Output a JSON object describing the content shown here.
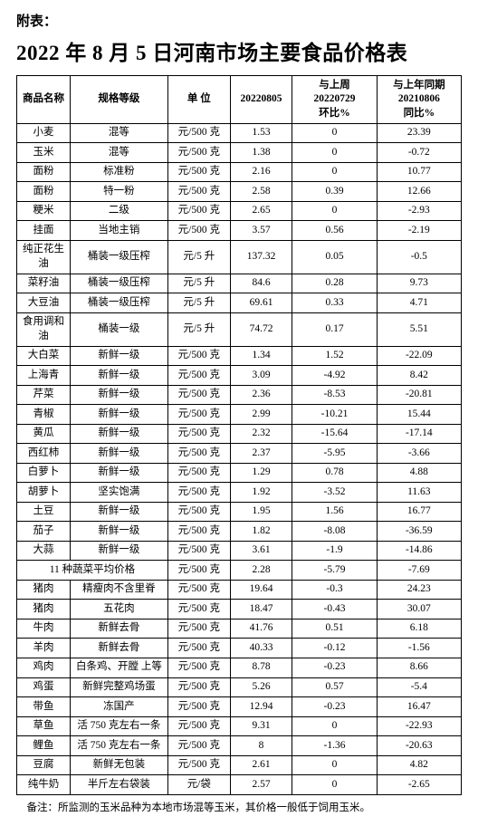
{
  "pre_title": "附表：",
  "title": "2022 年 8 月 5 日河南市场主要食品价格表",
  "headers": {
    "name": "商品名称",
    "spec": "规格等级",
    "unit": "单 位",
    "price": "20220805",
    "wow_l1": "与上周",
    "wow_l2": "20220729",
    "wow_l3": "环比%",
    "yoy_l1": "与上年同期",
    "yoy_l2": "20210806",
    "yoy_l3": "同比%"
  },
  "rows": [
    {
      "name": "小麦",
      "spec": "混等",
      "unit": "元/500 克",
      "price": "1.53",
      "wow": "0",
      "yoy": "23.39"
    },
    {
      "name": "玉米",
      "spec": "混等",
      "unit": "元/500 克",
      "price": "1.38",
      "wow": "0",
      "yoy": "-0.72"
    },
    {
      "name": "面粉",
      "spec": "标准粉",
      "unit": "元/500 克",
      "price": "2.16",
      "wow": "0",
      "yoy": "10.77"
    },
    {
      "name": "面粉",
      "spec": "特一粉",
      "unit": "元/500 克",
      "price": "2.58",
      "wow": "0.39",
      "yoy": "12.66"
    },
    {
      "name": "粳米",
      "spec": "二级",
      "unit": "元/500 克",
      "price": "2.65",
      "wow": "0",
      "yoy": "-2.93"
    },
    {
      "name": "挂面",
      "spec": "当地主销",
      "unit": "元/500 克",
      "price": "3.57",
      "wow": "0.56",
      "yoy": "-2.19"
    },
    {
      "name": "纯正花生油",
      "spec": "桶装一级压榨",
      "unit": "元/5 升",
      "price": "137.32",
      "wow": "0.05",
      "yoy": "-0.5"
    },
    {
      "name": "菜籽油",
      "spec": "桶装一级压榨",
      "unit": "元/5 升",
      "price": "84.6",
      "wow": "0.28",
      "yoy": "9.73"
    },
    {
      "name": "大豆油",
      "spec": "桶装一级压榨",
      "unit": "元/5 升",
      "price": "69.61",
      "wow": "0.33",
      "yoy": "4.71"
    },
    {
      "name": "食用调和油",
      "spec": "桶装一级",
      "unit": "元/5 升",
      "price": "74.72",
      "wow": "0.17",
      "yoy": "5.51"
    },
    {
      "name": "大白菜",
      "spec": "新鲜一级",
      "unit": "元/500 克",
      "price": "1.34",
      "wow": "1.52",
      "yoy": "-22.09"
    },
    {
      "name": "上海青",
      "spec": "新鲜一级",
      "unit": "元/500 克",
      "price": "3.09",
      "wow": "-4.92",
      "yoy": "8.42"
    },
    {
      "name": "芹菜",
      "spec": "新鲜一级",
      "unit": "元/500 克",
      "price": "2.36",
      "wow": "-8.53",
      "yoy": "-20.81"
    },
    {
      "name": "青椒",
      "spec": "新鲜一级",
      "unit": "元/500 克",
      "price": "2.99",
      "wow": "-10.21",
      "yoy": "15.44"
    },
    {
      "name": "黄瓜",
      "spec": "新鲜一级",
      "unit": "元/500 克",
      "price": "2.32",
      "wow": "-15.64",
      "yoy": "-17.14"
    },
    {
      "name": "西红柿",
      "spec": "新鲜一级",
      "unit": "元/500 克",
      "price": "2.37",
      "wow": "-5.95",
      "yoy": "-3.66"
    },
    {
      "name": "白萝卜",
      "spec": "新鲜一级",
      "unit": "元/500 克",
      "price": "1.29",
      "wow": "0.78",
      "yoy": "4.88"
    },
    {
      "name": "胡萝卜",
      "spec": "坚实饱满",
      "unit": "元/500 克",
      "price": "1.92",
      "wow": "-3.52",
      "yoy": "11.63"
    },
    {
      "name": "土豆",
      "spec": "新鲜一级",
      "unit": "元/500 克",
      "price": "1.95",
      "wow": "1.56",
      "yoy": "16.77"
    },
    {
      "name": "茄子",
      "spec": "新鲜一级",
      "unit": "元/500 克",
      "price": "1.82",
      "wow": "-8.08",
      "yoy": "-36.59"
    },
    {
      "name": "大蒜",
      "spec": "新鲜一级",
      "unit": "元/500 克",
      "price": "3.61",
      "wow": "-1.9",
      "yoy": "-14.86"
    }
  ],
  "avg_row": {
    "label": "11 种蔬菜平均价格",
    "unit": "元/500 克",
    "price": "2.28",
    "wow": "-5.79",
    "yoy": "-7.69"
  },
  "rows2": [
    {
      "name": "猪肉",
      "spec": "精瘦肉不含里脊",
      "unit": "元/500 克",
      "price": "19.64",
      "wow": "-0.3",
      "yoy": "24.23"
    },
    {
      "name": "猪肉",
      "spec": "五花肉",
      "unit": "元/500 克",
      "price": "18.47",
      "wow": "-0.43",
      "yoy": "30.07"
    },
    {
      "name": "牛肉",
      "spec": "新鲜去骨",
      "unit": "元/500 克",
      "price": "41.76",
      "wow": "0.51",
      "yoy": "6.18"
    },
    {
      "name": "羊肉",
      "spec": "新鲜去骨",
      "unit": "元/500 克",
      "price": "40.33",
      "wow": "-0.12",
      "yoy": "-1.56"
    },
    {
      "name": "鸡肉",
      "spec": "白条鸡、开膛 上等",
      "unit": "元/500 克",
      "price": "8.78",
      "wow": "-0.23",
      "yoy": "8.66"
    },
    {
      "name": "鸡蛋",
      "spec": "新鲜完整鸡场蛋",
      "unit": "元/500 克",
      "price": "5.26",
      "wow": "0.57",
      "yoy": "-5.4"
    },
    {
      "name": "带鱼",
      "spec": "冻国产",
      "unit": "元/500 克",
      "price": "12.94",
      "wow": "-0.23",
      "yoy": "16.47"
    },
    {
      "name": "草鱼",
      "spec": "活 750 克左右一条",
      "unit": "元/500 克",
      "price": "9.31",
      "wow": "0",
      "yoy": "-22.93"
    },
    {
      "name": "鲤鱼",
      "spec": "活 750 克左右一条",
      "unit": "元/500 克",
      "price": "8",
      "wow": "-1.36",
      "yoy": "-20.63"
    },
    {
      "name": "豆腐",
      "spec": "新鲜无包装",
      "unit": "元/500 克",
      "price": "2.61",
      "wow": "0",
      "yoy": "4.82"
    },
    {
      "name": "纯牛奶",
      "spec": "半斤左右袋装",
      "unit": "元/袋",
      "price": "2.57",
      "wow": "0",
      "yoy": "-2.65"
    }
  ],
  "footnote": "备注：所监测的玉米品种为本地市场混等玉米，其价格一般低于饲用玉米。"
}
